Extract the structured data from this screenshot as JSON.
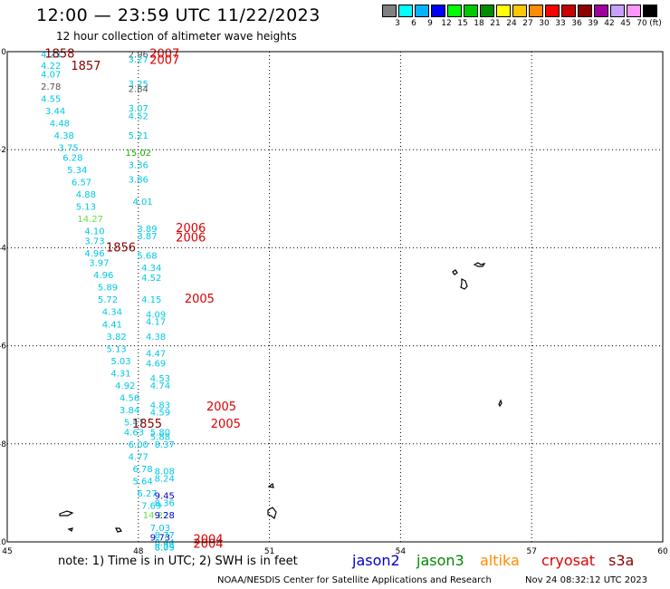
{
  "header": {
    "title": "12:00 — 23:59 UTC 11/22/2023",
    "subtitle": "12 hour collection of altimeter wave heights"
  },
  "colorbar": {
    "unit_label": "(ft)",
    "bins": [
      {
        "label": "3",
        "color": "#808080"
      },
      {
        "label": "6",
        "color": "#00ffff"
      },
      {
        "label": "9",
        "color": "#00b4ff"
      },
      {
        "label": "12",
        "color": "#0000ff"
      },
      {
        "label": "15",
        "color": "#00ff00"
      },
      {
        "label": "18",
        "color": "#00c800"
      },
      {
        "label": "21",
        "color": "#008c00"
      },
      {
        "label": "24",
        "color": "#ffff00"
      },
      {
        "label": "27",
        "color": "#ffc800"
      },
      {
        "label": "30",
        "color": "#ff8c00"
      },
      {
        "label": "33",
        "color": "#ff0000"
      },
      {
        "label": "36",
        "color": "#c80000"
      },
      {
        "label": "39",
        "color": "#8c0000"
      },
      {
        "label": "42",
        "color": "#a000a0"
      },
      {
        "label": "45",
        "color": "#c8a0ff"
      },
      {
        "label": "70",
        "color": "#ff96ff"
      },
      {
        "label": "",
        "color": "#000000"
      }
    ]
  },
  "footer": {
    "note": "note: 1) Time is in UTC; 2) SWH is in feet",
    "credit": "NOAA/NESDIS Center for Satellite Applications and Research",
    "timestamp": "Nov 24 08:32:12 UTC 2023",
    "satellites": [
      {
        "name": "jason2",
        "color": "#0000cc"
      },
      {
        "name": "jason3",
        "color": "#008800"
      },
      {
        "name": "altika",
        "color": "#ff8c00"
      },
      {
        "name": "cryosat",
        "color": "#dd0000"
      },
      {
        "name": "s3a",
        "color": "#880000"
      }
    ]
  },
  "chart_data": {
    "type": "scatter",
    "xlim": [
      45,
      60
    ],
    "ylim": [
      -10,
      0
    ],
    "x_ticks": [
      "45",
      "48",
      "51",
      "54",
      "57",
      "60"
    ],
    "y_ticks": [
      "0",
      "-2",
      "-4",
      "-6",
      "-8",
      "-10"
    ],
    "grid": true,
    "colors": {
      "cyan": "#00c8e6",
      "gray": "#555555",
      "green": "#66dd44",
      "darkgreen": "#22aa00",
      "blue": "#0000cc",
      "red": "#dd0000",
      "maroon": "#880000"
    },
    "points": [
      {
        "x": 46.0,
        "y": -0.05,
        "t": "4.23",
        "c": "cyan"
      },
      {
        "x": 46.0,
        "y": -0.28,
        "t": "4.22",
        "c": "cyan"
      },
      {
        "x": 46.0,
        "y": -0.45,
        "t": "4.07",
        "c": "cyan"
      },
      {
        "x": 46.0,
        "y": -0.7,
        "t": "2.78",
        "c": "gray"
      },
      {
        "x": 46.0,
        "y": -0.95,
        "t": "4.55",
        "c": "cyan"
      },
      {
        "x": 46.1,
        "y": -1.2,
        "t": "3.44",
        "c": "cyan"
      },
      {
        "x": 46.2,
        "y": -1.45,
        "t": "4.48",
        "c": "cyan"
      },
      {
        "x": 46.3,
        "y": -1.7,
        "t": "4.38",
        "c": "cyan"
      },
      {
        "x": 46.4,
        "y": -1.95,
        "t": "3.75",
        "c": "cyan"
      },
      {
        "x": 46.5,
        "y": -2.15,
        "t": "6.28",
        "c": "cyan"
      },
      {
        "x": 46.6,
        "y": -2.4,
        "t": "5.34",
        "c": "cyan"
      },
      {
        "x": 46.7,
        "y": -2.65,
        "t": "6.57",
        "c": "cyan"
      },
      {
        "x": 46.8,
        "y": -2.9,
        "t": "4.88",
        "c": "cyan"
      },
      {
        "x": 46.8,
        "y": -3.15,
        "t": "5.13",
        "c": "cyan"
      },
      {
        "x": 46.9,
        "y": -3.4,
        "t": "14.27",
        "c": "green"
      },
      {
        "x": 47.0,
        "y": -3.65,
        "t": "4.10",
        "c": "cyan"
      },
      {
        "x": 47.0,
        "y": -3.85,
        "t": "3.73",
        "c": "cyan"
      },
      {
        "x": 47.0,
        "y": -4.1,
        "t": "4.96",
        "c": "cyan"
      },
      {
        "x": 47.1,
        "y": -4.3,
        "t": "3.97",
        "c": "cyan"
      },
      {
        "x": 47.2,
        "y": -4.55,
        "t": "4.96",
        "c": "cyan"
      },
      {
        "x": 47.3,
        "y": -4.8,
        "t": "5.89",
        "c": "cyan"
      },
      {
        "x": 47.3,
        "y": -5.05,
        "t": "5.72",
        "c": "cyan"
      },
      {
        "x": 47.4,
        "y": -5.3,
        "t": "4.34",
        "c": "cyan"
      },
      {
        "x": 47.4,
        "y": -5.55,
        "t": "4.41",
        "c": "cyan"
      },
      {
        "x": 47.5,
        "y": -5.8,
        "t": "3.82",
        "c": "cyan"
      },
      {
        "x": 47.5,
        "y": -6.05,
        "t": "5.13",
        "c": "cyan"
      },
      {
        "x": 47.6,
        "y": -6.3,
        "t": "5.03",
        "c": "cyan"
      },
      {
        "x": 47.6,
        "y": -6.55,
        "t": "4.31",
        "c": "cyan"
      },
      {
        "x": 47.7,
        "y": -6.8,
        "t": "4.92",
        "c": "cyan"
      },
      {
        "x": 47.8,
        "y": -7.05,
        "t": "4.56",
        "c": "cyan"
      },
      {
        "x": 47.8,
        "y": -7.3,
        "t": "3.84",
        "c": "cyan"
      },
      {
        "x": 47.9,
        "y": -7.55,
        "t": "5.47",
        "c": "cyan"
      },
      {
        "x": 47.9,
        "y": -7.75,
        "t": "4.63",
        "c": "cyan"
      },
      {
        "x": 48.0,
        "y": -8.0,
        "t": "6.00",
        "c": "cyan"
      },
      {
        "x": 48.0,
        "y": -8.25,
        "t": "4.77",
        "c": "cyan"
      },
      {
        "x": 48.1,
        "y": -8.5,
        "t": "6.78",
        "c": "cyan"
      },
      {
        "x": 48.1,
        "y": -8.75,
        "t": "5.64",
        "c": "cyan"
      },
      {
        "x": 48.2,
        "y": -9.0,
        "t": "6.27",
        "c": "cyan"
      },
      {
        "x": 48.3,
        "y": -9.25,
        "t": "7.69",
        "c": "cyan"
      },
      {
        "x": 48.4,
        "y": -9.45,
        "t": "14.22",
        "c": "green"
      },
      {
        "x": 48.5,
        "y": -9.7,
        "t": "7.03",
        "c": "cyan"
      },
      {
        "x": 48.5,
        "y": -9.9,
        "t": "9.73",
        "c": "blue"
      },
      {
        "x": 48.6,
        "y": -10.1,
        "t": "8.09",
        "c": "cyan"
      },
      {
        "x": 48.0,
        "y": -0.05,
        "t": "2.96",
        "c": "gray"
      },
      {
        "x": 48.0,
        "y": -0.15,
        "t": "3.27",
        "c": "cyan"
      },
      {
        "x": 48.0,
        "y": -0.65,
        "t": "3.25",
        "c": "cyan"
      },
      {
        "x": 48.0,
        "y": -0.75,
        "t": "2.84",
        "c": "gray"
      },
      {
        "x": 48.0,
        "y": -1.15,
        "t": "3.07",
        "c": "cyan"
      },
      {
        "x": 48.0,
        "y": -1.3,
        "t": "4.52",
        "c": "cyan"
      },
      {
        "x": 48.0,
        "y": -1.7,
        "t": "5.21",
        "c": "cyan"
      },
      {
        "x": 48.0,
        "y": -2.05,
        "t": "15.02",
        "c": "darkgreen"
      },
      {
        "x": 48.0,
        "y": -2.3,
        "t": "3.36",
        "c": "cyan"
      },
      {
        "x": 48.0,
        "y": -2.6,
        "t": "3.86",
        "c": "cyan"
      },
      {
        "x": 48.1,
        "y": -3.05,
        "t": "4.01",
        "c": "cyan"
      },
      {
        "x": 48.2,
        "y": -3.6,
        "t": "3.89",
        "c": "cyan"
      },
      {
        "x": 48.2,
        "y": -3.75,
        "t": "3.87",
        "c": "cyan"
      },
      {
        "x": 48.2,
        "y": -4.15,
        "t": "5.68",
        "c": "cyan"
      },
      {
        "x": 48.3,
        "y": -4.4,
        "t": "4.34",
        "c": "cyan"
      },
      {
        "x": 48.3,
        "y": -4.6,
        "t": "4.52",
        "c": "cyan"
      },
      {
        "x": 48.3,
        "y": -5.05,
        "t": "4.15",
        "c": "cyan"
      },
      {
        "x": 48.4,
        "y": -5.35,
        "t": "4.09",
        "c": "cyan"
      },
      {
        "x": 48.4,
        "y": -5.5,
        "t": "4.17",
        "c": "cyan"
      },
      {
        "x": 48.4,
        "y": -5.8,
        "t": "4.38",
        "c": "cyan"
      },
      {
        "x": 48.4,
        "y": -6.15,
        "t": "4.47",
        "c": "cyan"
      },
      {
        "x": 48.4,
        "y": -6.35,
        "t": "4.69",
        "c": "cyan"
      },
      {
        "x": 48.5,
        "y": -6.65,
        "t": "4.53",
        "c": "cyan"
      },
      {
        "x": 48.5,
        "y": -6.8,
        "t": "4.74",
        "c": "cyan"
      },
      {
        "x": 48.5,
        "y": -7.2,
        "t": "4.83",
        "c": "cyan"
      },
      {
        "x": 48.5,
        "y": -7.35,
        "t": "4.59",
        "c": "cyan"
      },
      {
        "x": 48.5,
        "y": -7.75,
        "t": "5.80",
        "c": "cyan"
      },
      {
        "x": 48.5,
        "y": -7.85,
        "t": "5.88",
        "c": "cyan"
      },
      {
        "x": 48.6,
        "y": -8.0,
        "t": "8.37",
        "c": "cyan"
      },
      {
        "x": 48.6,
        "y": -8.55,
        "t": "8.08",
        "c": "cyan"
      },
      {
        "x": 48.6,
        "y": -8.7,
        "t": "8.24",
        "c": "cyan"
      },
      {
        "x": 48.6,
        "y": -9.05,
        "t": "9.45",
        "c": "blue"
      },
      {
        "x": 48.6,
        "y": -9.2,
        "t": "8.36",
        "c": "cyan"
      },
      {
        "x": 48.6,
        "y": -9.45,
        "t": "9.28",
        "c": "blue"
      },
      {
        "x": 48.6,
        "y": -9.85,
        "t": "8.77",
        "c": "cyan"
      },
      {
        "x": 48.6,
        "y": -10.0,
        "t": "8.44",
        "c": "cyan"
      },
      {
        "x": 48.6,
        "y": -10.1,
        "t": "8.75",
        "c": "cyan"
      },
      {
        "x": 46.2,
        "y": -0.05,
        "t": "1858",
        "c": "maroon"
      },
      {
        "x": 46.8,
        "y": -0.3,
        "t": "1857",
        "c": "maroon"
      },
      {
        "x": 47.6,
        "y": -4.0,
        "t": "1856",
        "c": "maroon"
      },
      {
        "x": 48.2,
        "y": -7.6,
        "t": "1855",
        "c": "maroon"
      },
      {
        "x": 48.6,
        "y": -0.05,
        "t": "2007",
        "c": "red"
      },
      {
        "x": 48.6,
        "y": -0.18,
        "t": "2007",
        "c": "red"
      },
      {
        "x": 49.2,
        "y": -3.6,
        "t": "2006",
        "c": "red"
      },
      {
        "x": 49.2,
        "y": -3.8,
        "t": "2006",
        "c": "red"
      },
      {
        "x": 49.4,
        "y": -5.05,
        "t": "2005",
        "c": "red"
      },
      {
        "x": 49.9,
        "y": -7.25,
        "t": "2005",
        "c": "red"
      },
      {
        "x": 50.0,
        "y": -7.6,
        "t": "2005",
        "c": "red"
      },
      {
        "x": 49.6,
        "y": -9.95,
        "t": "2004",
        "c": "red"
      },
      {
        "x": 49.6,
        "y": -10.05,
        "t": "2004",
        "c": "red"
      }
    ]
  }
}
